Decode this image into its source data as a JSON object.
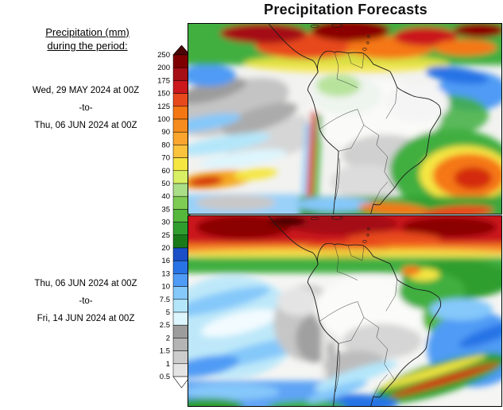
{
  "title": "Precipitation Forecasts",
  "legend": {
    "heading_line1": "Precipitation (mm)",
    "heading_line2": "during the period:",
    "scale_values": [
      "250",
      "200",
      "175",
      "150",
      "125",
      "100",
      "90",
      "80",
      "70",
      "60",
      "50",
      "40",
      "35",
      "30",
      "25",
      "20",
      "16",
      "13",
      "10",
      "7.5",
      "5",
      "2.5",
      "2",
      "1.5",
      "1",
      "0.5"
    ],
    "scale_colors": [
      "#4a0505",
      "#7f0000",
      "#a50f15",
      "#cb181d",
      "#e8491c",
      "#f57714",
      "#f78c1e",
      "#faa52d",
      "#fbc23c",
      "#f5e642",
      "#d9f064",
      "#aade87",
      "#7fcc55",
      "#55b73c",
      "#2f9e2f",
      "#1a7a1a",
      "#1a4fc8",
      "#2873e6",
      "#4f9bf5",
      "#85c8fa",
      "#b4e6fa",
      "#ddf5fd",
      "#9c9c9c",
      "#b4b4b4",
      "#cccccc",
      "#e4e4e4",
      "#ffffff"
    ]
  },
  "periods": [
    {
      "start": "Wed, 29 MAY 2024 at 00Z",
      "separator": "-to-",
      "end": "Thu, 06 JUN 2024 at 00Z"
    },
    {
      "start": "Thu, 06 JUN 2024 at 00Z",
      "separator": "-to-",
      "end": "Fri, 14 JUN 2024 at 00Z"
    }
  ]
}
